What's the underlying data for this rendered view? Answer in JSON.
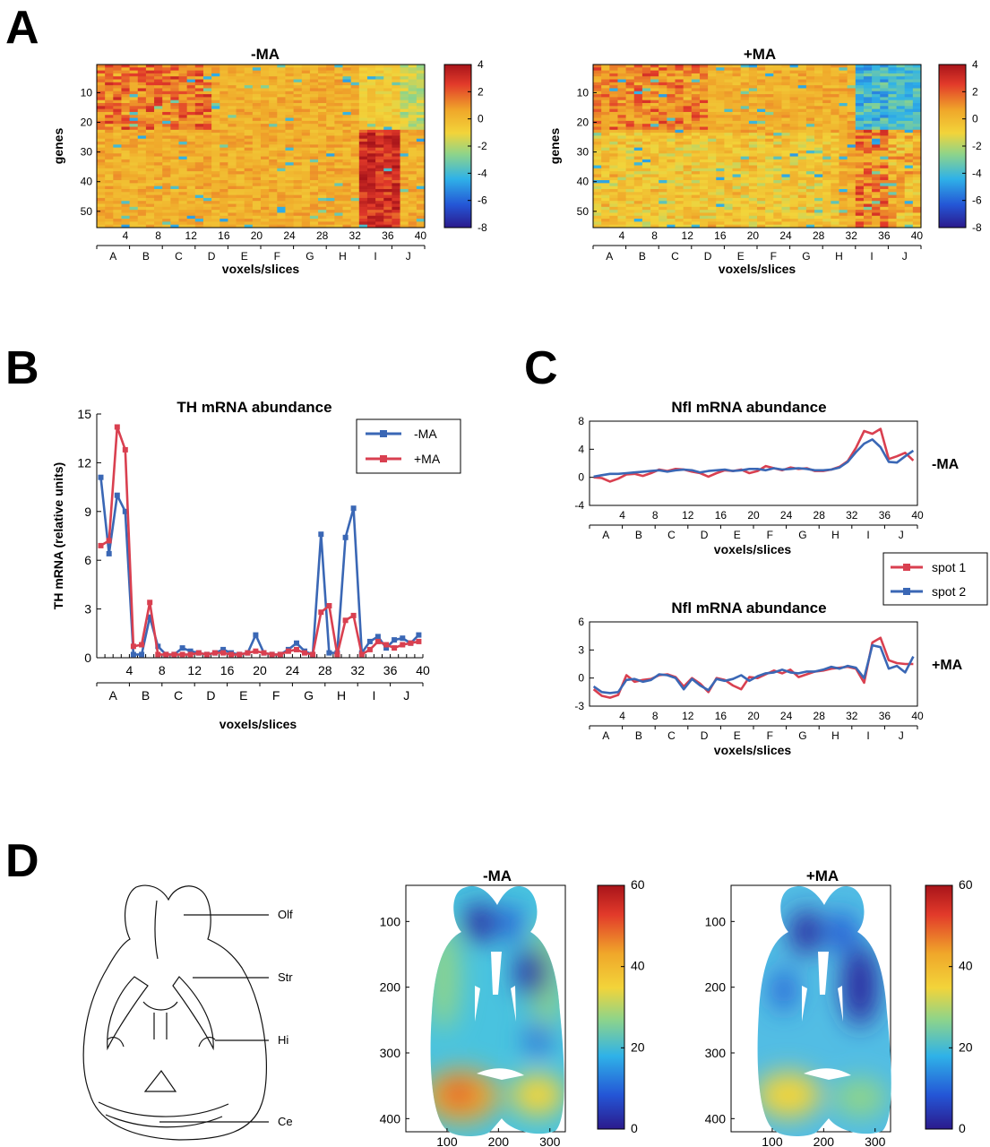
{
  "panels": {
    "A": "A",
    "B": "B",
    "C": "C",
    "D": "D"
  },
  "scales": {
    "jet": [
      "#2b1a8c",
      "#2456d6",
      "#2fb2e8",
      "#8ed48a",
      "#f2d43a",
      "#f0a72a",
      "#e23a2a",
      "#a8141a"
    ]
  },
  "regions": [
    "A",
    "B",
    "C",
    "D",
    "E",
    "F",
    "G",
    "H",
    "I",
    "J"
  ],
  "slice_ticks": [
    4,
    8,
    12,
    16,
    20,
    24,
    28,
    32,
    36,
    40
  ],
  "brain_atlas": {
    "labels": [
      "Olf",
      "Str",
      "Hi",
      "Ce"
    ]
  },
  "chart_data": [
    {
      "id": "A-minus",
      "type": "heatmap",
      "title": "-MA",
      "xlabel": "voxels/slices",
      "ylabel": "genes",
      "y_ticks": [
        10,
        20,
        30,
        40,
        50
      ],
      "colorbar_ticks": [
        4,
        2,
        0,
        -2,
        -4,
        -6,
        -8
      ],
      "clim": [
        -8,
        4
      ],
      "rows": 55,
      "cols": 40
    },
    {
      "id": "A-plus",
      "type": "heatmap",
      "title": "+MA",
      "xlabel": "voxels/slices",
      "ylabel": "genes",
      "y_ticks": [
        10,
        20,
        30,
        40,
        50
      ],
      "colorbar_ticks": [
        4,
        2,
        0,
        -2,
        -4,
        -6,
        -8
      ],
      "clim": [
        -8,
        4
      ],
      "rows": 55,
      "cols": 40
    },
    {
      "id": "B",
      "type": "line",
      "title": "TH mRNA abundance",
      "xlabel": "voxels/slices",
      "ylabel": "TH mRNA (relative units)",
      "ylim": [
        0,
        15
      ],
      "y_ticks": [
        0,
        3,
        6,
        9,
        12,
        15
      ],
      "xlim": [
        0,
        40
      ],
      "legend": "top-right",
      "series": [
        {
          "name": "-MA",
          "color": "#3a67b5",
          "values": [
            11.1,
            6.4,
            10.0,
            9.0,
            0.2,
            0.2,
            2.5,
            0.7,
            0.2,
            0.2,
            0.6,
            0.4,
            0.3,
            0.2,
            0.3,
            0.5,
            0.3,
            0.2,
            0.3,
            1.4,
            0.3,
            0.2,
            0.2,
            0.5,
            0.9,
            0.4,
            0.2,
            7.6,
            0.3,
            0.3,
            7.4,
            9.2,
            0.3,
            1.0,
            1.3,
            0.6,
            1.1,
            1.2,
            0.9,
            1.4
          ]
        },
        {
          "name": "+MA",
          "color": "#d94050",
          "values": [
            6.9,
            7.2,
            14.2,
            12.8,
            0.7,
            0.8,
            3.4,
            0.2,
            0.2,
            0.2,
            0.2,
            0.2,
            0.3,
            0.2,
            0.3,
            0.3,
            0.2,
            0.2,
            0.3,
            0.4,
            0.3,
            0.2,
            0.2,
            0.4,
            0.5,
            0.3,
            0.2,
            2.8,
            3.2,
            0.2,
            2.3,
            2.6,
            0.2,
            0.5,
            1.0,
            0.8,
            0.6,
            0.8,
            0.9,
            1.0
          ]
        }
      ]
    },
    {
      "id": "C-minus",
      "type": "line",
      "title": "Nfl mRNA abundance",
      "row_label": "-MA",
      "xlabel": "voxels/slices",
      "ylim": [
        -4,
        8
      ],
      "y_ticks": [
        -4,
        0,
        4,
        8
      ],
      "xlim": [
        0,
        40
      ],
      "series": [
        {
          "name": "spot 1",
          "color": "#d94050",
          "values": [
            0.0,
            -0.1,
            -0.6,
            -0.2,
            0.4,
            0.5,
            0.2,
            0.6,
            1.1,
            0.9,
            1.2,
            1.1,
            0.8,
            0.6,
            0.1,
            0.6,
            1.0,
            0.9,
            1.1,
            0.6,
            0.9,
            1.6,
            1.3,
            1.0,
            1.4,
            1.2,
            1.3,
            0.9,
            0.9,
            1.1,
            1.5,
            2.3,
            4.2,
            6.6,
            6.2,
            6.9,
            2.6,
            3.0,
            3.5,
            2.4
          ]
        },
        {
          "name": "spot 2",
          "color": "#3a67b5",
          "values": [
            0.1,
            0.3,
            0.5,
            0.5,
            0.6,
            0.7,
            0.8,
            0.9,
            1.0,
            0.8,
            1.0,
            1.1,
            1.0,
            0.7,
            0.9,
            1.0,
            1.1,
            0.9,
            1.0,
            1.2,
            1.2,
            1.0,
            1.3,
            1.1,
            1.2,
            1.3,
            1.2,
            1.0,
            1.0,
            1.1,
            1.4,
            2.2,
            3.6,
            4.8,
            5.4,
            4.3,
            2.2,
            2.1,
            3.0,
            3.8
          ]
        }
      ]
    },
    {
      "id": "C-plus",
      "type": "line",
      "title": "Nfl mRNA abundance",
      "row_label": "+MA",
      "xlabel": "voxels/slices",
      "ylim": [
        -3,
        6
      ],
      "y_ticks": [
        -3,
        0,
        3,
        6
      ],
      "xlim": [
        0,
        40
      ],
      "legend": "top-right",
      "series": [
        {
          "name": "spot 1",
          "color": "#d94050",
          "values": [
            -1.2,
            -1.9,
            -2.1,
            -1.8,
            0.3,
            -0.4,
            -0.2,
            -0.1,
            0.3,
            0.4,
            0.1,
            -0.9,
            0.0,
            -0.6,
            -1.5,
            0.0,
            -0.2,
            -0.8,
            -1.2,
            0.1,
            0.0,
            0.4,
            0.8,
            0.5,
            0.9,
            0.1,
            0.4,
            0.7,
            0.8,
            1.0,
            1.1,
            1.2,
            1.0,
            -0.5,
            3.8,
            4.3,
            1.9,
            1.6,
            1.5,
            1.5
          ]
        },
        {
          "name": "spot 2",
          "color": "#3a67b5",
          "values": [
            -0.9,
            -1.5,
            -1.6,
            -1.5,
            -0.2,
            -0.1,
            -0.4,
            -0.2,
            0.4,
            0.3,
            0.0,
            -1.2,
            -0.1,
            -0.8,
            -1.3,
            -0.1,
            -0.3,
            -0.1,
            0.3,
            -0.3,
            0.2,
            0.5,
            0.6,
            0.9,
            0.6,
            0.5,
            0.7,
            0.7,
            0.9,
            1.2,
            1.0,
            1.3,
            1.1,
            0.0,
            3.5,
            3.3,
            1.0,
            1.3,
            0.6,
            2.3
          ]
        }
      ]
    },
    {
      "id": "D-minus",
      "type": "heatmap",
      "title": "-MA",
      "x_ticks": [
        100,
        200,
        300
      ],
      "y_ticks": [
        100,
        200,
        300,
        400
      ],
      "colorbar_ticks": [
        60,
        40,
        20,
        0
      ],
      "clim": [
        0,
        60
      ]
    },
    {
      "id": "D-plus",
      "type": "heatmap",
      "title": "+MA",
      "x_ticks": [
        100,
        200,
        300
      ],
      "y_ticks": [
        100,
        200,
        300,
        400
      ],
      "colorbar_ticks": [
        60,
        40,
        20,
        0
      ],
      "clim": [
        0,
        60
      ]
    }
  ]
}
